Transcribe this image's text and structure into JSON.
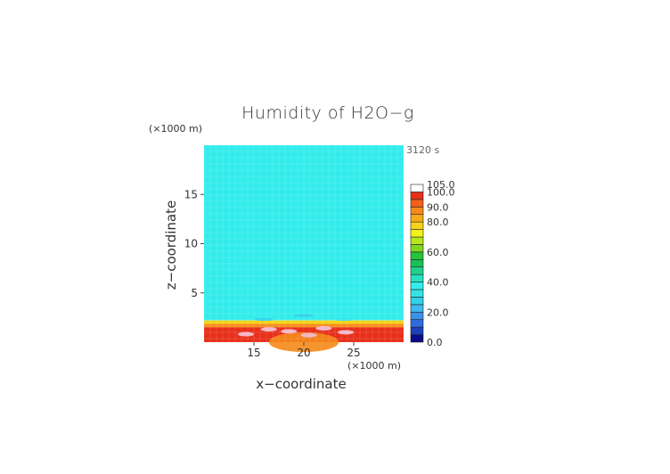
{
  "chart_data": {
    "type": "heatmap",
    "title": "Humidity of H2O−g",
    "xlabel": "x−coordinate",
    "ylabel": "z−coordinate",
    "x_unit": "(×1000 m)",
    "y_unit": "(×1000 m)",
    "time_label": "3120 s",
    "x_ticks": [
      15,
      20,
      25
    ],
    "y_ticks": [
      5,
      10,
      15
    ],
    "xlim": [
      10,
      30
    ],
    "ylim": [
      0,
      20
    ],
    "colorbar": {
      "range": [
        0,
        105
      ],
      "levels": [
        0,
        5,
        10,
        15,
        20,
        25,
        30,
        35,
        40,
        45,
        50,
        55,
        60,
        65,
        70,
        75,
        80,
        85,
        90,
        95,
        100,
        105
      ],
      "colors": [
        "#0b0b8a",
        "#1d3fb8",
        "#2f6bdc",
        "#3d93ea",
        "#3fb7f0",
        "#2fd3e8",
        "#36e4e6",
        "#33ecec",
        "#27e1c2",
        "#1fd08f",
        "#18c258",
        "#25c43a",
        "#7fd61c",
        "#b7e61a",
        "#f2f21a",
        "#f6d41a",
        "#f6ab1a",
        "#f58a1a",
        "#f2601a",
        "#e8301a",
        "#e4101a"
      ],
      "tick_labels": [
        "0.0",
        "20.0",
        "40.0",
        "60.0",
        "80.0",
        "90.0",
        "100.0",
        "105.0"
      ],
      "tick_values": [
        0,
        20,
        40,
        60,
        80,
        90,
        100,
        105
      ]
    },
    "field_bands": [
      {
        "z_range": [
          2.2,
          20
        ],
        "value": 37
      },
      {
        "z_range": [
          1.85,
          2.2
        ],
        "value": 75
      },
      {
        "z_range": [
          1.5,
          1.85
        ],
        "value": 85
      },
      {
        "z_range": [
          0,
          1.5
        ],
        "value": 95
      }
    ],
    "saturated_patches": [
      {
        "x": 14.2,
        "z": 0.8,
        "value": 101
      },
      {
        "x": 16.5,
        "z": 1.3,
        "value": 101
      },
      {
        "x": 18.5,
        "z": 1.1,
        "value": 101
      },
      {
        "x": 20.5,
        "z": 0.7,
        "value": 102
      },
      {
        "x": 22.0,
        "z": 1.4,
        "value": 101
      },
      {
        "x": 24.2,
        "z": 1.0,
        "value": 101
      }
    ],
    "low_patches": [
      {
        "x": 16.0,
        "z": 2.3,
        "value": 28
      },
      {
        "x": 20.0,
        "z": 2.7,
        "value": 25
      },
      {
        "x": 24.0,
        "z": 2.3,
        "value": 30
      }
    ]
  }
}
